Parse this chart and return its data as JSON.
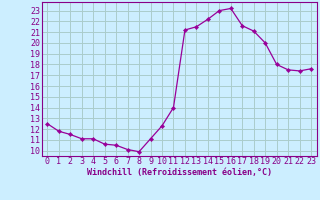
{
  "x": [
    0,
    1,
    2,
    3,
    4,
    5,
    6,
    7,
    8,
    9,
    10,
    11,
    12,
    13,
    14,
    15,
    16,
    17,
    18,
    19,
    20,
    21,
    22,
    23
  ],
  "y": [
    12.5,
    11.8,
    11.5,
    11.1,
    11.1,
    10.6,
    10.5,
    10.1,
    9.9,
    11.1,
    12.3,
    14.0,
    21.2,
    21.5,
    22.2,
    23.0,
    23.2,
    21.6,
    21.1,
    20.0,
    18.0,
    17.5,
    17.4,
    17.6
  ],
  "line_color": "#990099",
  "marker": "D",
  "marker_size": 2.2,
  "bg_color": "#cceeff",
  "grid_color": "#aacccc",
  "xlabel": "Windchill (Refroidissement éolien,°C)",
  "xlabel_fontsize": 6.0,
  "ylabel_ticks": [
    10,
    11,
    12,
    13,
    14,
    15,
    16,
    17,
    18,
    19,
    20,
    21,
    22,
    23
  ],
  "xlim": [
    -0.5,
    23.5
  ],
  "ylim": [
    9.5,
    23.8
  ],
  "tick_fontsize": 6.0,
  "axis_color": "#880088"
}
